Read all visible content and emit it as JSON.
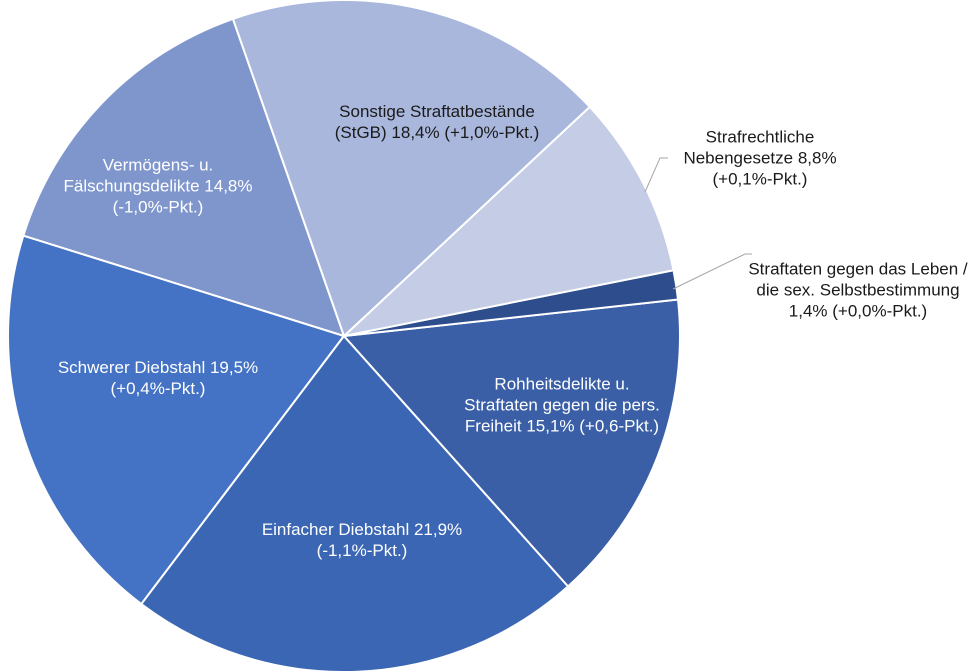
{
  "chart_data": {
    "type": "pie",
    "categories": [
      "Sonstige Straftatbestände (StGB)",
      "Strafrechtliche Nebengesetze",
      "Straftaten gegen das Leben / die sex. Selbstbestimmung",
      "Rohheitsdelikte u. Straftaten gegen die pers. Freiheit",
      "Einfacher Diebstahl",
      "Schwerer Diebstahl",
      "Vermögens- u. Fälschungsdelikte"
    ],
    "values": [
      18.4,
      8.8,
      1.4,
      15.1,
      21.9,
      19.5,
      14.8
    ],
    "value_labels": [
      "18,4% (+1,0%-Pkt.)",
      "8,8% (+0,1%-Pkt.)",
      "1,4% (+0,0%-Pkt.)",
      "15,1% (+0,6-Pkt.)",
      "21,9% (-1,1%-Pkt.)",
      "19,5% (+0,4%-Pkt.)",
      "14,8% (-1,0%-Pkt.)"
    ],
    "colors": [
      "#a9b7dc",
      "#c5cde6",
      "#2e4d8c",
      "#3a5fa6",
      "#3b66b4",
      "#4472c4",
      "#7f96cd"
    ]
  }
}
